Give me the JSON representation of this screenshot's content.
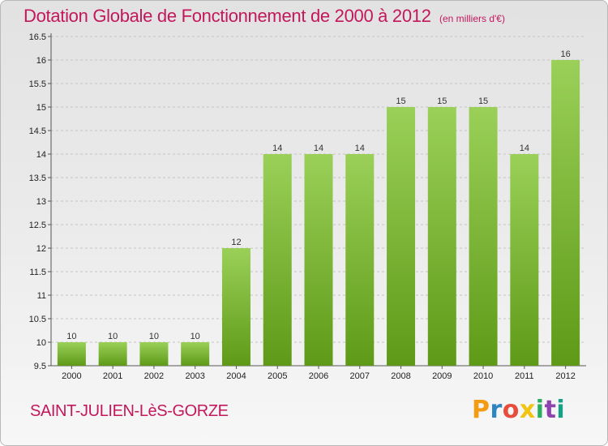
{
  "header": {
    "title": "Dotation Globale de Fonctionnement de 2000 à 2012",
    "unit": "(en milliers d'€)"
  },
  "footer": {
    "commune": "SAINT-JULIEN-LèS-GORZE",
    "logo": {
      "letters": [
        "P",
        "r",
        "o",
        "x",
        "i",
        "t",
        "i"
      ],
      "colors": [
        "#f39c12",
        "#2e86c1",
        "#e74c3c",
        "#f1c40f",
        "#27ae60",
        "#8e44ad",
        "#16a085"
      ]
    }
  },
  "colors": {
    "bar_top": "#9ad058",
    "bar_bottom": "#5e9a17",
    "title": "#c2185b"
  },
  "chart_data": {
    "type": "bar",
    "categories": [
      "2000",
      "2001",
      "2002",
      "2003",
      "2004",
      "2005",
      "2006",
      "2007",
      "2008",
      "2009",
      "2010",
      "2011",
      "2012"
    ],
    "values": [
      10,
      10,
      10,
      10,
      12,
      14,
      14,
      14,
      15,
      15,
      15,
      14,
      16
    ],
    "data_labels": [
      "10",
      "10",
      "10",
      "10",
      "12",
      "14",
      "14",
      "14",
      "15",
      "15",
      "15",
      "14",
      "16"
    ],
    "yticks": [
      "9.5",
      "10",
      "10.5",
      "11",
      "11.5",
      "12",
      "12.5",
      "13",
      "13.5",
      "14",
      "14.5",
      "15",
      "15.5",
      "16",
      "16.5"
    ],
    "ylim": [
      9.5,
      16.5
    ],
    "grid": true,
    "title": "Dotation Globale de Fonctionnement de 2000 à 2012",
    "xlabel": "",
    "ylabel": ""
  }
}
